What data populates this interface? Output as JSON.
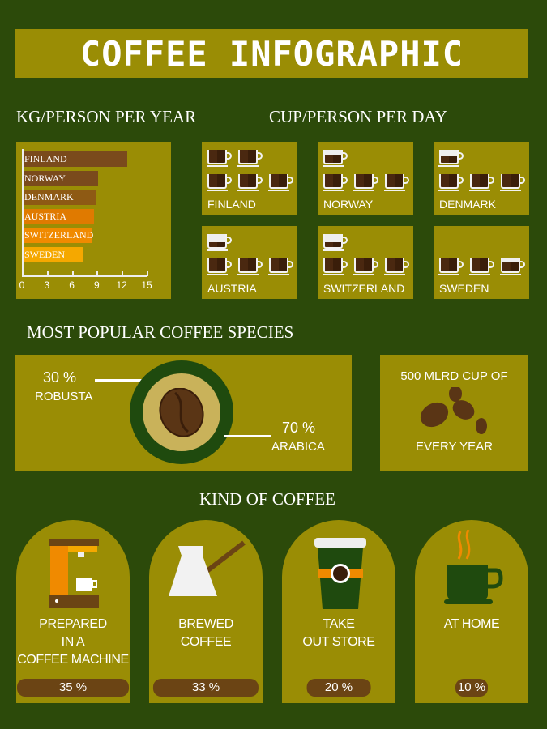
{
  "title": "COFFEE INFOGRAPHIC",
  "kg_section": {
    "heading": "KG/PERSON PER YEAR"
  },
  "cup_section": {
    "heading": "CUP/PERSON PER DAY",
    "countries": [
      {
        "name": "FINLAND",
        "rows": [
          [
            1,
            1
          ],
          [
            1,
            1,
            1
          ]
        ]
      },
      {
        "name": "NORWAY",
        "rows": [
          [
            0.6
          ],
          [
            1,
            1,
            1
          ]
        ]
      },
      {
        "name": "DENMARK",
        "rows": [
          [
            0.5
          ],
          [
            1,
            1,
            1
          ]
        ]
      },
      {
        "name": "AUSTRIA",
        "rows": [
          [
            0.4
          ],
          [
            1,
            1,
            1
          ]
        ]
      },
      {
        "name": "SWITZERLAND",
        "rows": [
          [
            0.35
          ],
          [
            1,
            1,
            1
          ]
        ]
      },
      {
        "name": "SWEDEN",
        "rows": [
          [
            1,
            1,
            0.7
          ]
        ]
      }
    ]
  },
  "chart_data": {
    "type": "bar",
    "orientation": "horizontal",
    "categories": [
      "FINLAND",
      "NORWAY",
      "DENMARK",
      "AUSTRIA",
      "SWITZERLAND",
      "SWEDEN"
    ],
    "values": [
      12.7,
      9.2,
      8.9,
      8.7,
      8.5,
      7.3
    ],
    "colors": [
      "#7a4a1c",
      "#7a4a1c",
      "#8e5a14",
      "#e07a00",
      "#f08a00",
      "#f5a800"
    ],
    "xticks": [
      "0",
      "3",
      "6",
      "9",
      "12",
      "15"
    ],
    "xlim": [
      0,
      15
    ]
  },
  "species": {
    "heading": "MOST POPULAR COFFEE SPECIES",
    "robusta": {
      "pct": "30 %",
      "name": "ROBUSTA",
      "value": 30
    },
    "arabica": {
      "pct": "70 %",
      "name": "ARABICA",
      "value": 70
    }
  },
  "yearly": {
    "line1": "500 MLRD CUP OF",
    "line2": "EVERY YEAR"
  },
  "kind": {
    "heading": "KIND OF COFFEE",
    "items": [
      {
        "lines": [
          "PREPARED",
          "IN A",
          "COFFEE MACHINE"
        ],
        "pct": "35 %",
        "value": 35
      },
      {
        "lines": [
          "BREWED",
          "COFFEE"
        ],
        "pct": "33 %",
        "value": 33
      },
      {
        "lines": [
          "TAKE",
          "OUT STORE"
        ],
        "pct": "20 %",
        "value": 20
      },
      {
        "lines": [
          "AT HOME"
        ],
        "pct": "10 %",
        "value": 10
      }
    ]
  },
  "colors": {
    "background": "#2c4a0a",
    "panel": "#9a8d05",
    "brown": "#6b4414",
    "orange": "#f08a00"
  }
}
